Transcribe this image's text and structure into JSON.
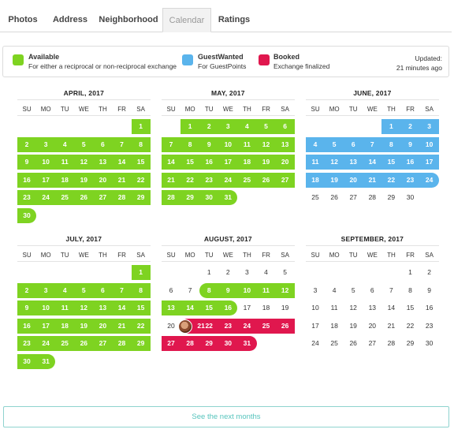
{
  "tabs": [
    {
      "label": "Photos",
      "active": false
    },
    {
      "label": "Address",
      "active": false
    },
    {
      "label": "Neighborhood",
      "active": false
    },
    {
      "label": "Calendar",
      "active": true
    },
    {
      "label": "Ratings",
      "active": false
    }
  ],
  "legend": {
    "items": [
      {
        "title": "Available",
        "desc": "For either a reciprocal or non-reciprocal exchange",
        "color": "#7ed321"
      },
      {
        "title": "GuestWanted",
        "desc": "For GuestPoints",
        "color": "#5ab4ec"
      },
      {
        "title": "Booked",
        "desc": "Exchange finalized",
        "color": "#e0174e"
      }
    ],
    "updated_label": "Updated:",
    "updated_value": "21 minutes ago"
  },
  "weekdays": [
    "SU",
    "MO",
    "TU",
    "WE",
    "TH",
    "FR",
    "SA"
  ],
  "status_colors": {
    "available": "#7ed321",
    "guest": "#5ab4ec",
    "booked": "#e0174e"
  },
  "months": [
    {
      "title": "APRIL, 2017",
      "start": 6,
      "days": 30,
      "runs": [
        {
          "from": 1,
          "to": 30,
          "status": "available"
        }
      ]
    },
    {
      "title": "MAY, 2017",
      "start": 1,
      "days": 31,
      "runs": [
        {
          "from": 1,
          "to": 31,
          "status": "available"
        }
      ]
    },
    {
      "title": "JUNE, 2017",
      "start": 4,
      "days": 30,
      "runs": [
        {
          "from": 1,
          "to": 24,
          "status": "guest"
        }
      ]
    },
    {
      "title": "JULY, 2017",
      "start": 6,
      "days": 31,
      "runs": [
        {
          "from": 1,
          "to": 31,
          "status": "available"
        }
      ]
    },
    {
      "title": "AUGUST, 2017",
      "start": 2,
      "days": 31,
      "runs": [
        {
          "from": 8,
          "to": 16,
          "status": "available"
        },
        {
          "from": 21,
          "to": 31,
          "status": "booked"
        }
      ],
      "avatar_day": 21
    },
    {
      "title": "SEPTEMBER, 2017",
      "start": 5,
      "days": 30,
      "runs": []
    }
  ],
  "next_button": "See the next months"
}
